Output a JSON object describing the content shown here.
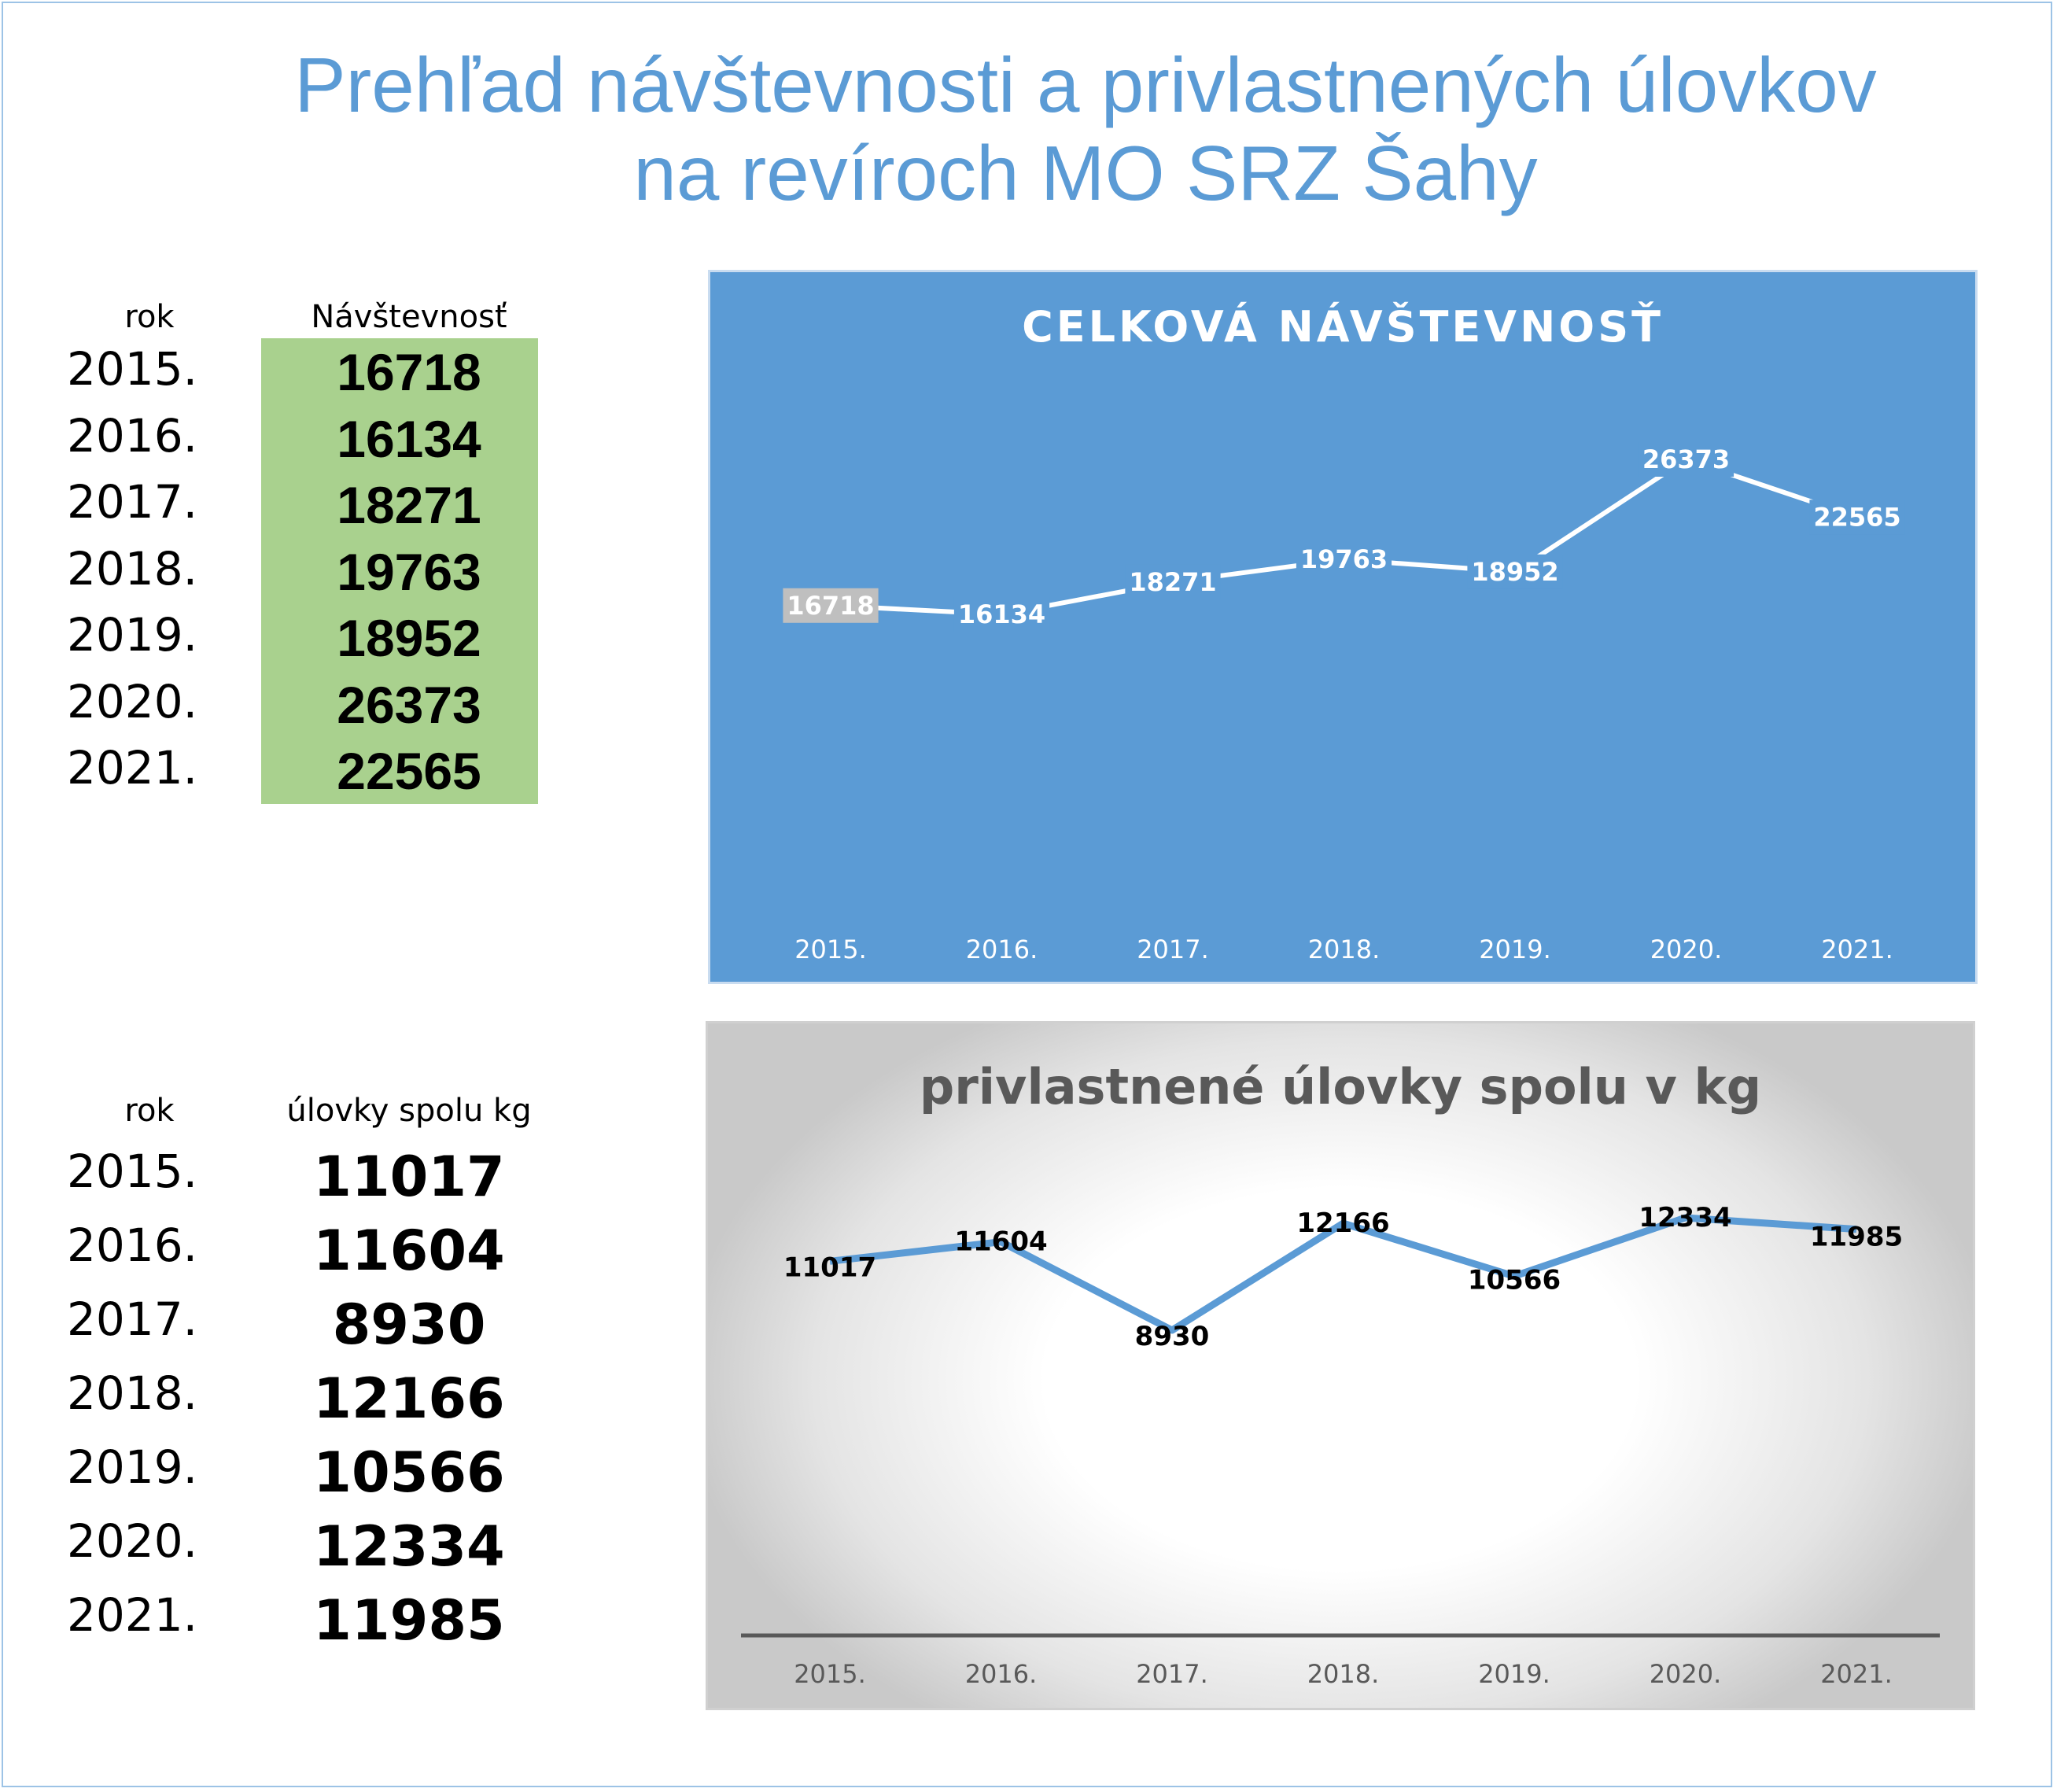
{
  "header": {
    "title_line1": "Prehľad návštevnosti a privlastnených úlovkov",
    "title_line2": "na revíroch MO SRZ Šahy"
  },
  "visits_table": {
    "col_year": "rok",
    "col_value": "Návštevnosť",
    "rows": [
      {
        "year": "2015.",
        "value": "16718"
      },
      {
        "year": "2016.",
        "value": "16134"
      },
      {
        "year": "2017.",
        "value": "18271"
      },
      {
        "year": "2018.",
        "value": "19763"
      },
      {
        "year": "2019.",
        "value": "18952"
      },
      {
        "year": "2020.",
        "value": "26373"
      },
      {
        "year": "2021.",
        "value": "22565"
      }
    ]
  },
  "catch_table": {
    "col_year": "rok",
    "col_value": "úlovky spolu kg",
    "rows": [
      {
        "year": "2015.",
        "value": "11017"
      },
      {
        "year": "2016.",
        "value": "11604"
      },
      {
        "year": "2017.",
        "value": "8930"
      },
      {
        "year": "2018.",
        "value": "12166"
      },
      {
        "year": "2019.",
        "value": "10566"
      },
      {
        "year": "2020.",
        "value": "12334"
      },
      {
        "year": "2021.",
        "value": "11985"
      }
    ]
  },
  "colors": {
    "title": "#5b9bd5",
    "chart1_bg": "#5b9bd5",
    "chart1_line": "#ffffff",
    "chart2_line": "#5b9bd5",
    "table_highlight": "#a9d18e"
  },
  "chart_data": [
    {
      "type": "line",
      "title": "CELKOVÁ NÁVŠTEVNOSŤ",
      "categories": [
        "2015.",
        "2016.",
        "2017.",
        "2018.",
        "2019.",
        "2020.",
        "2021."
      ],
      "values": [
        16718,
        16134,
        18271,
        19763,
        18952,
        26373,
        22565
      ],
      "data_labels": true,
      "grid": false,
      "legend": "none"
    },
    {
      "type": "line",
      "title": "privlastnené úlovky spolu v kg",
      "categories": [
        "2015.",
        "2016.",
        "2017.",
        "2018.",
        "2019.",
        "2020.",
        "2021."
      ],
      "values": [
        11017,
        11604,
        8930,
        12166,
        10566,
        12334,
        11985
      ],
      "data_labels": true,
      "grid": false,
      "legend": "none"
    }
  ]
}
